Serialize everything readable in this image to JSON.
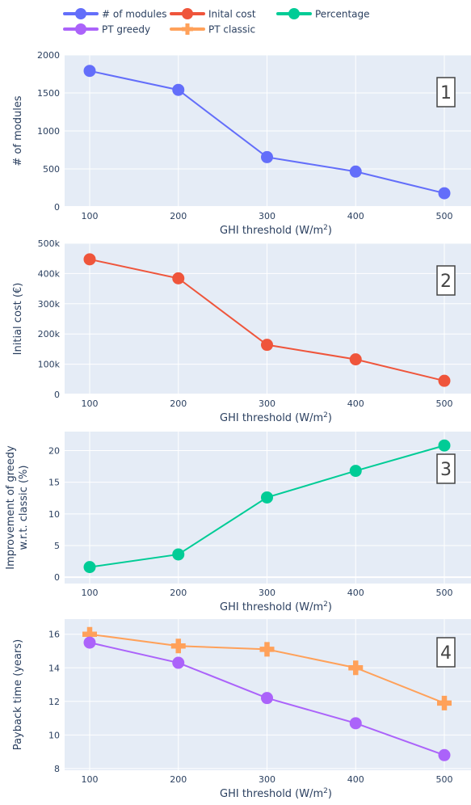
{
  "legend": [
    {
      "label": "# of modules",
      "color": "#636efa",
      "marker": "circle"
    },
    {
      "label": "PT greedy",
      "color": "#ab63fa",
      "marker": "circle"
    },
    {
      "label": "Inital cost",
      "color": "#ef553b",
      "marker": "circle"
    },
    {
      "label": "PT classic",
      "color": "#ffa15a",
      "marker": "cross"
    },
    {
      "label": "Percentage",
      "color": "#00cc96",
      "marker": "circle"
    }
  ],
  "chart_data": [
    {
      "type": "line",
      "badge": "1",
      "x": [
        100,
        200,
        300,
        400,
        500
      ],
      "xlabel": "GHI threshold (W/m",
      "xlabel_sup": "2",
      "xlabel_end": ")",
      "ylabel": [
        "# of modules"
      ],
      "ylim": [
        0,
        2000
      ],
      "yticks": [
        {
          "v": 0,
          "t": "0"
        },
        {
          "v": 500,
          "t": "500"
        },
        {
          "v": 1000,
          "t": "1000"
        },
        {
          "v": 1500,
          "t": "1500"
        },
        {
          "v": 2000,
          "t": "2000"
        }
      ],
      "series": [
        {
          "name": "# of modules",
          "values": [
            1790,
            1540,
            655,
            465,
            180
          ],
          "color": "#636efa",
          "marker": "circle"
        }
      ]
    },
    {
      "type": "line",
      "badge": "2",
      "x": [
        100,
        200,
        300,
        400,
        500
      ],
      "xlabel": "GHI threshold (W/m",
      "xlabel_sup": "2",
      "xlabel_end": ")",
      "ylabel": [
        "Initial cost (€)"
      ],
      "ylim": [
        0,
        500000
      ],
      "yticks": [
        {
          "v": 0,
          "t": "0"
        },
        {
          "v": 100000,
          "t": "100k"
        },
        {
          "v": 200000,
          "t": "200k"
        },
        {
          "v": 300000,
          "t": "300k"
        },
        {
          "v": 400000,
          "t": "400k"
        },
        {
          "v": 500000,
          "t": "500k"
        }
      ],
      "series": [
        {
          "name": "Inital cost",
          "values": [
            447000,
            384000,
            164000,
            116000,
            45000
          ],
          "color": "#ef553b",
          "marker": "circle"
        }
      ]
    },
    {
      "type": "line",
      "badge": "3",
      "x": [
        100,
        200,
        300,
        400,
        500
      ],
      "xlabel": "GHI threshold (W/m",
      "xlabel_sup": "2",
      "xlabel_end": ")",
      "ylabel": [
        "Improvement of greedy",
        "w.r.t. classic (%)"
      ],
      "ylim": [
        -1,
        23
      ],
      "yticks": [
        {
          "v": 0,
          "t": "0"
        },
        {
          "v": 5,
          "t": "5"
        },
        {
          "v": 10,
          "t": "10"
        },
        {
          "v": 15,
          "t": "15"
        },
        {
          "v": 20,
          "t": "20"
        }
      ],
      "series": [
        {
          "name": "Percentage",
          "values": [
            1.6,
            3.6,
            12.6,
            16.8,
            20.8
          ],
          "color": "#00cc96",
          "marker": "circle"
        }
      ]
    },
    {
      "type": "line",
      "badge": "4",
      "x": [
        100,
        200,
        300,
        400,
        500
      ],
      "xlabel": "GHI threshold (W/m",
      "xlabel_sup": "2",
      "xlabel_end": ")",
      "ylabel": [
        "Payback time (years)"
      ],
      "ylim": [
        7.9,
        16.9
      ],
      "yticks": [
        {
          "v": 8,
          "t": "8"
        },
        {
          "v": 10,
          "t": "10"
        },
        {
          "v": 12,
          "t": "12"
        },
        {
          "v": 14,
          "t": "14"
        },
        {
          "v": 16,
          "t": "16"
        }
      ],
      "series": [
        {
          "name": "PT classic",
          "values": [
            16.0,
            15.3,
            15.1,
            14.0,
            11.9
          ],
          "color": "#ffa15a",
          "marker": "cross"
        },
        {
          "name": "PT greedy",
          "values": [
            15.5,
            14.3,
            12.2,
            10.7,
            8.8
          ],
          "color": "#ab63fa",
          "marker": "circle"
        }
      ]
    }
  ]
}
